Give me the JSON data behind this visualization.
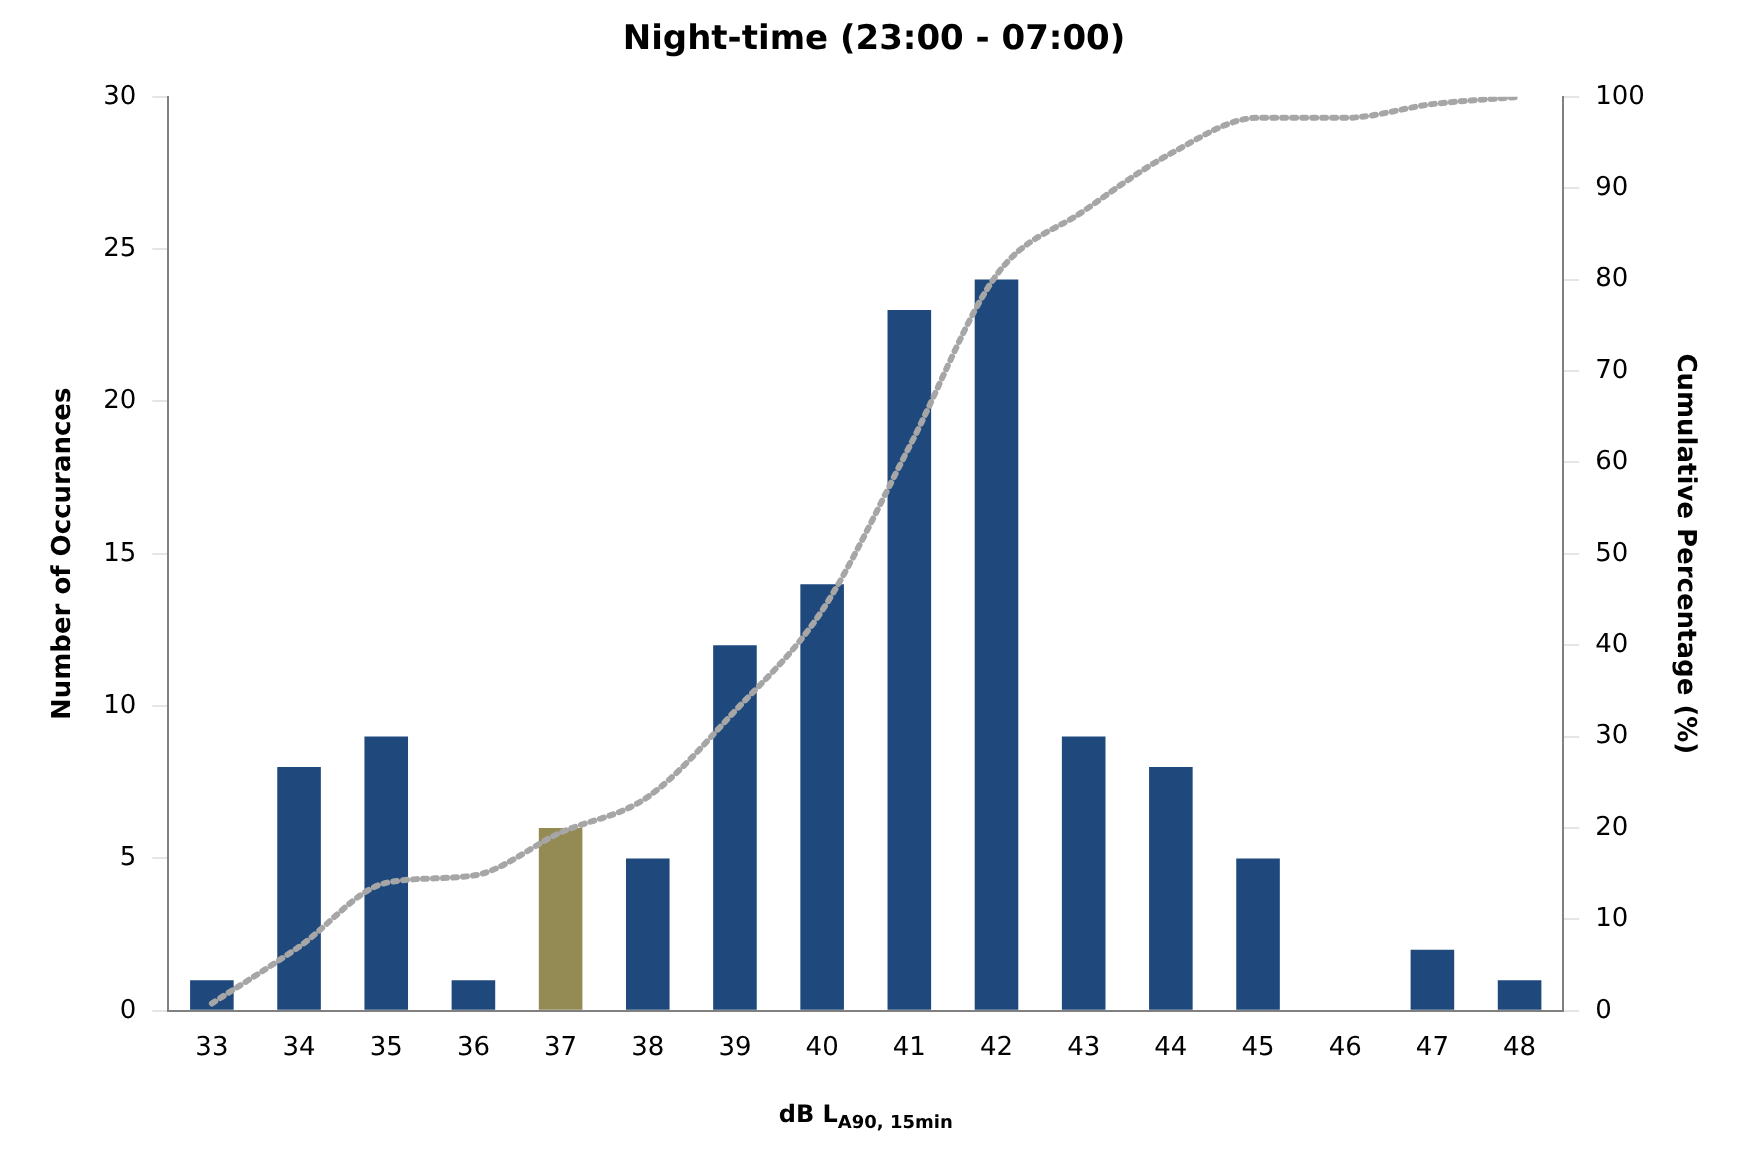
{
  "chart_data": {
    "type": "bar",
    "title": "Night-time (23:00 - 07:00)",
    "xlabel": "dB L$_{A90, 15min}$",
    "ylabel": "Number of Occurances",
    "y2label": "Cumulative Percentage (%)",
    "categories": [
      "33",
      "34",
      "35",
      "36",
      "37",
      "38",
      "39",
      "40",
      "41",
      "42",
      "43",
      "44",
      "45",
      "46",
      "47",
      "48"
    ],
    "series": [
      {
        "colors": [
          "#1f497d",
          "#1f497d",
          "#1f497d",
          "#1f497d",
          "#948a54",
          "#1f497d",
          "#1f497d",
          "#1f497d",
          "#1f497d",
          "#1f497d",
          "#1f497d",
          "#1f497d",
          "#1f497d",
          "#1f497d",
          "#1f497d",
          "#1f497d"
        ],
        "values": [
          1,
          8,
          9,
          1,
          6,
          5,
          12,
          14,
          23,
          24,
          9,
          8,
          5,
          0,
          2,
          1
        ]
      },
      {
        "type": "line",
        "axis": "y2",
        "color": "#a6a6a6",
        "line_style": "dotted",
        "marker": "none",
        "values": [
          0.8,
          7,
          14,
          14.8,
          19.5,
          23.4,
          32.8,
          43.8,
          61.7,
          80.5,
          87.5,
          93.8,
          97.7,
          97.7,
          99.2,
          100
        ]
      }
    ],
    "ylim": [
      0,
      30
    ],
    "yticks": [
      0,
      5,
      10,
      15,
      20,
      25,
      30
    ],
    "y2lim": [
      0,
      100
    ],
    "y2ticks": [
      0,
      10,
      20,
      30,
      40,
      50,
      60,
      70,
      80,
      90,
      100
    ],
    "grid": false,
    "legend": false
  }
}
